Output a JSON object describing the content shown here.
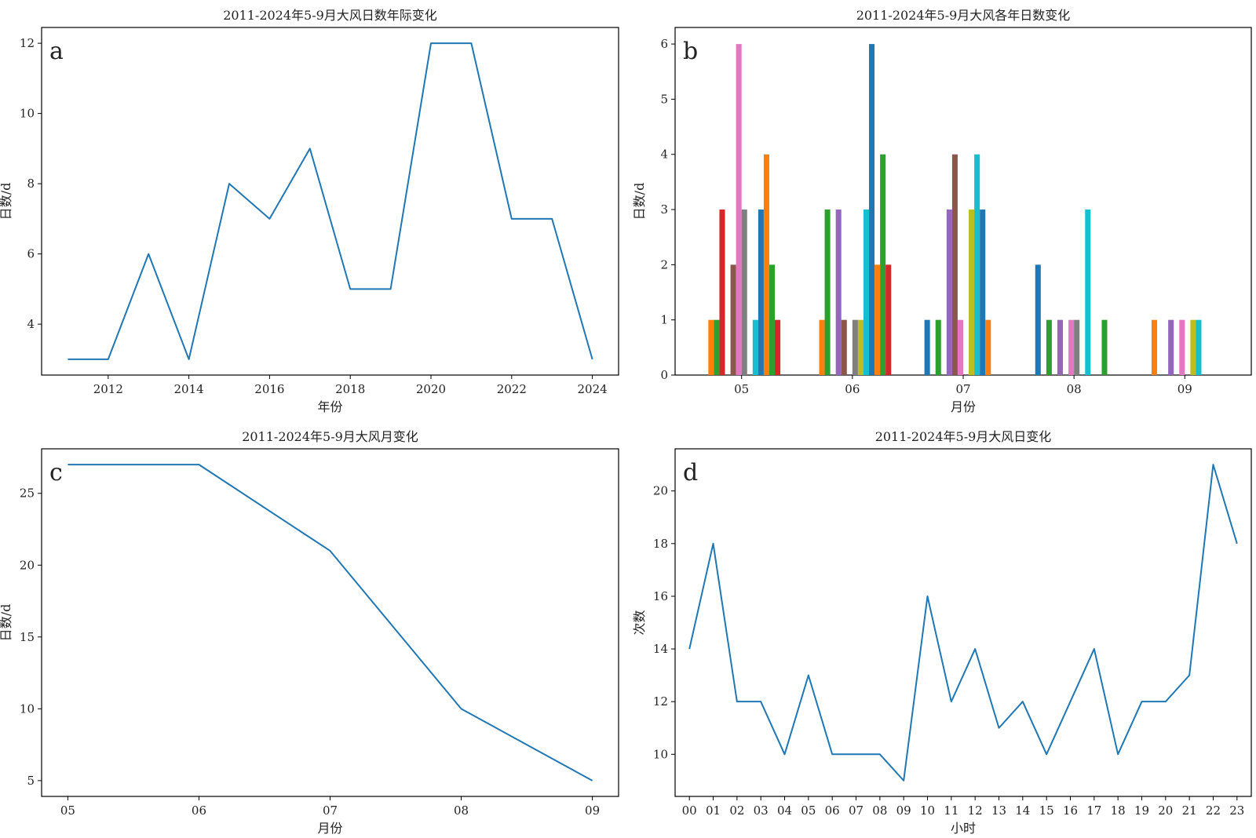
{
  "chart_data": [
    {
      "id": "a",
      "type": "line",
      "title": "2011-2024年5-9月大风日数年际变化",
      "panel_label": "a",
      "xlabel": "年份",
      "ylabel": "日数/d",
      "x": [
        2011,
        2012,
        2013,
        2014,
        2015,
        2016,
        2017,
        2018,
        2019,
        2020,
        2021,
        2022,
        2023,
        2024
      ],
      "values": [
        3,
        3,
        6,
        3,
        8,
        7,
        9,
        5,
        5,
        12,
        12,
        7,
        7,
        3
      ],
      "xlim": [
        2010.35,
        2024.65
      ],
      "ylim": [
        2.55,
        12.45
      ],
      "xticks": [
        2012,
        2014,
        2016,
        2018,
        2020,
        2022,
        2024
      ],
      "xtick_labels": [
        "2012",
        "2014",
        "2016",
        "2018",
        "2020",
        "2022",
        "2024"
      ],
      "yticks": [
        4,
        6,
        8,
        10,
        12
      ],
      "ytick_labels": [
        "4",
        "6",
        "8",
        "10",
        "12"
      ],
      "color": "#1f77b4"
    },
    {
      "id": "b",
      "type": "bar",
      "title": "2011-2024年5-9月大风各年日数变化",
      "panel_label": "b",
      "xlabel": "月份",
      "ylabel": "日数/d",
      "categories": [
        "05",
        "06",
        "07",
        "08",
        "09"
      ],
      "ylim": [
        0,
        6.3
      ],
      "yticks": [
        0,
        1,
        2,
        3,
        4,
        5,
        6
      ],
      "ytick_labels": [
        "0",
        "1",
        "2",
        "3",
        "4",
        "5",
        "6"
      ],
      "series": [
        {
          "color": "#1f77b4",
          "values": [
            0,
            0,
            1,
            2,
            0
          ]
        },
        {
          "color": "#ff7f0e",
          "values": [
            1,
            1,
            0,
            0,
            1
          ]
        },
        {
          "color": "#2ca02c",
          "values": [
            1,
            3,
            1,
            1,
            0
          ]
        },
        {
          "color": "#d62728",
          "values": [
            3,
            0,
            0,
            0,
            0
          ]
        },
        {
          "color": "#9467bd",
          "values": [
            0,
            3,
            3,
            1,
            1
          ]
        },
        {
          "color": "#8c564b",
          "values": [
            2,
            1,
            4,
            0,
            0
          ]
        },
        {
          "color": "#e377c2",
          "values": [
            6,
            0,
            1,
            1,
            1
          ]
        },
        {
          "color": "#7f7f7f",
          "values": [
            3,
            1,
            0,
            1,
            0
          ]
        },
        {
          "color": "#bcbd22",
          "values": [
            0,
            1,
            3,
            0,
            1
          ]
        },
        {
          "color": "#17becf",
          "values": [
            1,
            3,
            4,
            3,
            1
          ]
        },
        {
          "color": "#1f77b4",
          "values": [
            3,
            6,
            3,
            0,
            0
          ]
        },
        {
          "color": "#ff7f0e",
          "values": [
            4,
            2,
            1,
            0,
            0
          ]
        },
        {
          "color": "#2ca02c",
          "values": [
            2,
            4,
            0,
            1,
            0
          ]
        },
        {
          "color": "#d62728",
          "values": [
            1,
            2,
            0,
            0,
            0
          ]
        }
      ]
    },
    {
      "id": "c",
      "type": "line",
      "title": "2011-2024年5-9月大风月变化",
      "panel_label": "c",
      "xlabel": "月份",
      "ylabel": "日数/d",
      "categories": [
        "05",
        "06",
        "07",
        "08",
        "09"
      ],
      "values": [
        27,
        27,
        21,
        10,
        5
      ],
      "ylim": [
        3.9,
        28.1
      ],
      "yticks": [
        5,
        10,
        15,
        20,
        25
      ],
      "ytick_labels": [
        "5",
        "10",
        "15",
        "20",
        "25"
      ],
      "color": "#1f77b4"
    },
    {
      "id": "d",
      "type": "line",
      "title": "2011-2024年5-9月大风日变化",
      "panel_label": "d",
      "xlabel": "小时",
      "ylabel": "次数",
      "categories": [
        "00",
        "01",
        "02",
        "03",
        "04",
        "05",
        "06",
        "07",
        "08",
        "09",
        "10",
        "11",
        "12",
        "13",
        "14",
        "15",
        "16",
        "17",
        "18",
        "19",
        "20",
        "21",
        "22",
        "23"
      ],
      "values": [
        14,
        18,
        12,
        12,
        10,
        13,
        10,
        10,
        10,
        9,
        16,
        12,
        14,
        11,
        12,
        10,
        12,
        14,
        10,
        12,
        12,
        13,
        21,
        18
      ],
      "ylim": [
        8.4,
        21.6
      ],
      "yticks": [
        10,
        12,
        14,
        16,
        18,
        20
      ],
      "ytick_labels": [
        "10",
        "12",
        "14",
        "16",
        "18",
        "20"
      ],
      "color": "#1f77b4"
    }
  ]
}
